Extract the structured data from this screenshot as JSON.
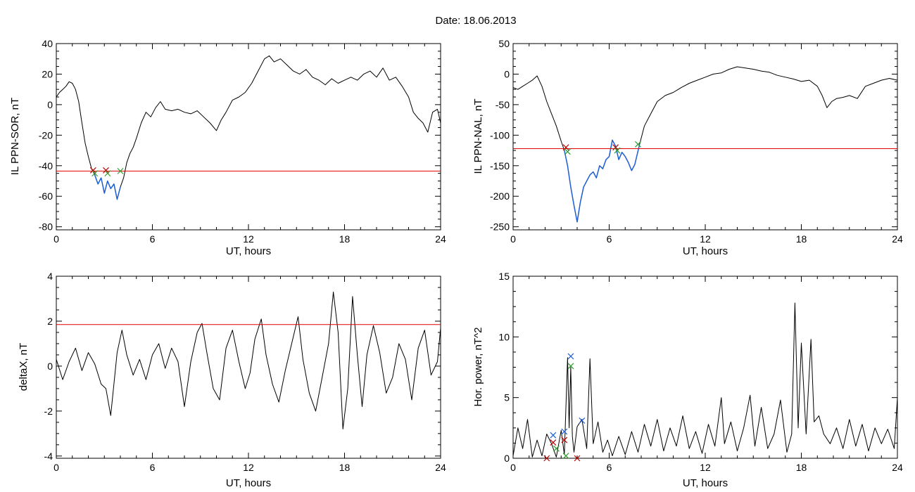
{
  "header": {
    "title": "Date:  18.06.2013"
  },
  "chart_data": [
    {
      "type": "line",
      "panel": "top-left",
      "title": "",
      "xlabel": "UT, hours",
      "ylabel": "IL PPN-SOR, nT",
      "xlim": [
        0,
        24
      ],
      "ylim": [
        -82,
        40
      ],
      "xticks": [
        0,
        6,
        12,
        18,
        24
      ],
      "yticks": [
        -80,
        -60,
        -40,
        -20,
        0,
        20,
        40
      ],
      "threshold": -43.5,
      "threshold_color": "#e00000",
      "series": [
        {
          "color": "#000000",
          "x": [
            0,
            0.2,
            0.4,
            0.6,
            0.8,
            1.0,
            1.2,
            1.4,
            1.6,
            1.8,
            2.0,
            2.2,
            2.4,
            2.6,
            2.8,
            3.0,
            3.2,
            3.4,
            3.6,
            3.8,
            4.0,
            4.2,
            4.4,
            4.6,
            4.8,
            5.0,
            5.3,
            5.6,
            5.9,
            6.2,
            6.5,
            6.8,
            7.2,
            7.6,
            8.0,
            8.4,
            8.8,
            9.2,
            9.6,
            10.0,
            10.3,
            10.6,
            11.0,
            11.4,
            11.8,
            12.2,
            12.6,
            13.0,
            13.3,
            13.6,
            14.0,
            14.4,
            14.8,
            15.2,
            15.6,
            16.0,
            16.4,
            16.8,
            17.2,
            17.6,
            18.0,
            18.4,
            18.8,
            19.2,
            19.6,
            20.0,
            20.4,
            20.8,
            21.2,
            21.6,
            22.0,
            22.3,
            22.6,
            22.9,
            23.2,
            23.5,
            23.8,
            24.0
          ],
          "y": [
            5,
            8,
            10,
            12,
            15,
            14,
            10,
            2,
            -12,
            -25,
            -34,
            -42,
            -46,
            -52,
            -48,
            -58,
            -50,
            -55,
            -52,
            -62,
            -54,
            -48,
            -38,
            -32,
            -28,
            -22,
            -12,
            -5,
            -8,
            -2,
            2,
            -3,
            -4,
            -3,
            -5,
            -6,
            -4,
            -8,
            -12,
            -17,
            -10,
            -5,
            3,
            5,
            8,
            14,
            22,
            30,
            32,
            28,
            30,
            26,
            22,
            20,
            23,
            18,
            16,
            13,
            17,
            14,
            16,
            18,
            16,
            20,
            22,
            18,
            24,
            16,
            18,
            12,
            5,
            -5,
            -9,
            -12,
            -18,
            -5,
            -3,
            -12
          ]
        },
        {
          "color": "#1f5fd6",
          "x": [
            2.4,
            2.6,
            2.8,
            3.0,
            3.2,
            3.4,
            3.6,
            3.8,
            4.0
          ],
          "y": [
            -46,
            -52,
            -48,
            -58,
            -50,
            -55,
            -52,
            -62,
            -54
          ]
        }
      ],
      "markers": [
        {
          "x": 2.3,
          "y": -43,
          "color": "#c00000"
        },
        {
          "x": 2.4,
          "y": -45,
          "color": "#2a9d2a"
        },
        {
          "x": 3.1,
          "y": -43,
          "color": "#c00000"
        },
        {
          "x": 3.2,
          "y": -45,
          "color": "#2a9d2a"
        },
        {
          "x": 4.0,
          "y": -43.5,
          "color": "#2a9d2a"
        }
      ]
    },
    {
      "type": "line",
      "panel": "top-right",
      "title": "",
      "xlabel": "UT, hours",
      "ylabel": "IL PPN-NAL, nT",
      "xlim": [
        0,
        24
      ],
      "ylim": [
        -255,
        50
      ],
      "xticks": [
        0,
        6,
        12,
        18,
        24
      ],
      "yticks": [
        -250,
        -200,
        -150,
        -100,
        -50,
        0,
        50
      ],
      "threshold": -122,
      "threshold_color": "#e00000",
      "series": [
        {
          "color": "#000000",
          "x": [
            0,
            0.3,
            0.6,
            0.9,
            1.2,
            1.5,
            1.8,
            2.1,
            2.4,
            2.7,
            3.0,
            3.2,
            3.4,
            3.6,
            3.8,
            4.0,
            4.2,
            4.4,
            4.6,
            4.8,
            5.0,
            5.2,
            5.4,
            5.6,
            5.8,
            6.0,
            6.2,
            6.4,
            6.6,
            6.8,
            7.0,
            7.2,
            7.4,
            7.6,
            7.9,
            8.2,
            8.6,
            9.0,
            9.5,
            10.0,
            10.5,
            11.0,
            11.5,
            12.0,
            12.5,
            13.0,
            13.5,
            14.0,
            14.5,
            15.0,
            15.5,
            16.0,
            16.5,
            17.0,
            17.5,
            18.0,
            18.5,
            19.0,
            19.3,
            19.6,
            19.9,
            20.2,
            20.6,
            21.0,
            21.5,
            22.0,
            22.5,
            23.0,
            23.5,
            24.0
          ],
          "y": [
            -22,
            -25,
            -20,
            -15,
            -10,
            -3,
            -20,
            -45,
            -65,
            -85,
            -110,
            -125,
            -150,
            -185,
            -215,
            -242,
            -210,
            -185,
            -175,
            -165,
            -160,
            -170,
            -150,
            -155,
            -140,
            -135,
            -108,
            -118,
            -140,
            -128,
            -135,
            -145,
            -158,
            -148,
            -115,
            -85,
            -65,
            -45,
            -35,
            -30,
            -22,
            -15,
            -10,
            -5,
            0,
            2,
            8,
            12,
            10,
            8,
            5,
            3,
            -2,
            -5,
            -8,
            -12,
            -10,
            -20,
            -35,
            -55,
            -45,
            -40,
            -38,
            -35,
            -40,
            -20,
            -15,
            -10,
            -7,
            -10
          ]
        },
        {
          "color": "#1f5fd6",
          "x": [
            3.2,
            3.4,
            3.6,
            3.8,
            4.0,
            4.2,
            4.4,
            4.6,
            4.8,
            5.0,
            5.2,
            5.4,
            5.6,
            5.8,
            6.0,
            6.2,
            6.4,
            6.6,
            6.8,
            7.0,
            7.2,
            7.4,
            7.6,
            7.9
          ],
          "y": [
            -125,
            -150,
            -185,
            -215,
            -242,
            -210,
            -185,
            -175,
            -165,
            -160,
            -170,
            -150,
            -155,
            -140,
            -135,
            -108,
            -118,
            -140,
            -128,
            -135,
            -145,
            -158,
            -148,
            -115
          ]
        }
      ],
      "markers": [
        {
          "x": 3.3,
          "y": -120,
          "color": "#c00000"
        },
        {
          "x": 3.4,
          "y": -127,
          "color": "#2a9d2a"
        },
        {
          "x": 6.4,
          "y": -120,
          "color": "#c00000"
        },
        {
          "x": 6.5,
          "y": -125,
          "color": "#2a9d2a"
        },
        {
          "x": 7.8,
          "y": -115,
          "color": "#2a9d2a"
        }
      ]
    },
    {
      "type": "line",
      "panel": "bottom-left",
      "title": "",
      "xlabel": "UT, hours",
      "ylabel": "deltaX, nT",
      "xlim": [
        0,
        24
      ],
      "ylim": [
        -4.1,
        4
      ],
      "xticks": [
        0,
        6,
        12,
        18,
        24
      ],
      "yticks": [
        -4,
        -2,
        0,
        2,
        4
      ],
      "threshold": 1.85,
      "threshold_color": "#e00000",
      "series": [
        {
          "color": "#000000",
          "x": [
            0,
            0.4,
            0.8,
            1.2,
            1.6,
            2.0,
            2.4,
            2.8,
            3.1,
            3.4,
            3.8,
            4.1,
            4.4,
            4.8,
            5.2,
            5.6,
            6.0,
            6.4,
            6.8,
            7.2,
            7.6,
            8.0,
            8.4,
            8.8,
            9.1,
            9.4,
            9.8,
            10.2,
            10.6,
            11.0,
            11.4,
            11.8,
            12.1,
            12.4,
            12.8,
            13.1,
            13.5,
            13.9,
            14.3,
            14.7,
            15.1,
            15.4,
            15.8,
            16.2,
            16.6,
            17.0,
            17.3,
            17.6,
            17.9,
            18.2,
            18.5,
            18.8,
            19.1,
            19.4,
            19.8,
            20.2,
            20.6,
            21.0,
            21.4,
            21.8,
            22.2,
            22.6,
            23.0,
            23.4,
            23.8,
            24.0
          ],
          "y": [
            0.3,
            -0.6,
            0.2,
            0.8,
            -0.2,
            0.6,
            0.1,
            -0.8,
            -1.0,
            -2.2,
            0.6,
            1.6,
            0.5,
            -0.4,
            0.3,
            -0.6,
            0.5,
            1.0,
            -0.1,
            0.8,
            0.2,
            -1.8,
            0.2,
            1.5,
            1.9,
            0.6,
            -1.0,
            -1.5,
            0.8,
            1.6,
            0.2,
            -1.0,
            -0.3,
            1.2,
            2.1,
            0.5,
            -0.8,
            -1.6,
            -0.2,
            1.0,
            2.2,
            0.3,
            -1.2,
            -2.0,
            -0.5,
            1.0,
            3.3,
            1.5,
            -2.8,
            -1.0,
            3.1,
            0.5,
            -1.8,
            0.5,
            1.8,
            0.6,
            -1.2,
            -0.5,
            1.0,
            0.3,
            -1.5,
            0.8,
            1.6,
            -0.4,
            0.2,
            1.7
          ]
        }
      ],
      "markers": []
    },
    {
      "type": "line",
      "panel": "bottom-right",
      "title": "",
      "xlabel": "UT, hours",
      "ylabel": "Hor. power, nT^2",
      "xlim": [
        0,
        24
      ],
      "ylim": [
        0,
        15
      ],
      "xticks": [
        0,
        6,
        12,
        18,
        24
      ],
      "yticks": [
        0,
        5,
        10,
        15
      ],
      "threshold": null,
      "threshold_color": "#e00000",
      "series": [
        {
          "color": "#000000",
          "x": [
            0,
            0.3,
            0.6,
            0.9,
            1.2,
            1.5,
            1.8,
            2.1,
            2.4,
            2.7,
            3.0,
            3.2,
            3.4,
            3.5,
            3.6,
            3.7,
            3.8,
            4.0,
            4.3,
            4.6,
            4.8,
            5.0,
            5.3,
            5.6,
            5.9,
            6.2,
            6.6,
            7.0,
            7.4,
            7.8,
            8.2,
            8.6,
            9.0,
            9.4,
            9.8,
            10.2,
            10.6,
            11.0,
            11.4,
            11.8,
            12.2,
            12.6,
            13.0,
            13.2,
            13.6,
            14.0,
            14.4,
            14.8,
            15.1,
            15.5,
            15.9,
            16.3,
            16.7,
            17.1,
            17.4,
            17.6,
            17.8,
            18.0,
            18.3,
            18.6,
            18.8,
            19.1,
            19.4,
            19.8,
            20.2,
            20.6,
            21.0,
            21.4,
            21.8,
            22.2,
            22.6,
            23.0,
            23.4,
            23.8,
            24.0
          ],
          "y": [
            0.2,
            2.5,
            0.8,
            3.2,
            0.1,
            1.5,
            0.2,
            2.0,
            1.2,
            0.1,
            2.3,
            0.3,
            8.3,
            2.5,
            7.5,
            1.8,
            0.5,
            2.6,
            3.2,
            0.8,
            8.2,
            1.2,
            3.0,
            0.5,
            1.5,
            0.2,
            1.8,
            0.3,
            2.2,
            0.5,
            2.8,
            1.0,
            3.2,
            0.6,
            2.5,
            1.0,
            3.5,
            0.8,
            2.2,
            0.4,
            2.8,
            1.0,
            5.0,
            1.2,
            3.0,
            0.6,
            2.5,
            5.2,
            1.0,
            4.2,
            0.8,
            2.0,
            4.8,
            0.5,
            2.0,
            12.8,
            2.5,
            9.5,
            2.0,
            9.8,
            3.0,
            3.5,
            2.0,
            1.2,
            2.5,
            0.8,
            3.2,
            1.0,
            2.8,
            0.6,
            2.5,
            1.2,
            2.4,
            0.8,
            5.0
          ]
        }
      ],
      "markers": [
        {
          "x": 2.5,
          "y": 1.9,
          "color": "#1f5fd6"
        },
        {
          "x": 3.2,
          "y": 2.2,
          "color": "#1f5fd6"
        },
        {
          "x": 3.6,
          "y": 8.4,
          "color": "#1f5fd6"
        },
        {
          "x": 3.6,
          "y": 7.6,
          "color": "#2a9d2a"
        },
        {
          "x": 4.3,
          "y": 3.1,
          "color": "#1f5fd6"
        },
        {
          "x": 2.5,
          "y": 1.3,
          "color": "#c00000"
        },
        {
          "x": 3.2,
          "y": 1.5,
          "color": "#c00000"
        },
        {
          "x": 2.1,
          "y": 0.0,
          "color": "#c00000"
        },
        {
          "x": 4.0,
          "y": 0.0,
          "color": "#c00000"
        },
        {
          "x": 3.3,
          "y": 0.2,
          "color": "#2a9d2a"
        },
        {
          "x": 2.7,
          "y": 0.8,
          "color": "#2a9d2a"
        }
      ]
    }
  ]
}
